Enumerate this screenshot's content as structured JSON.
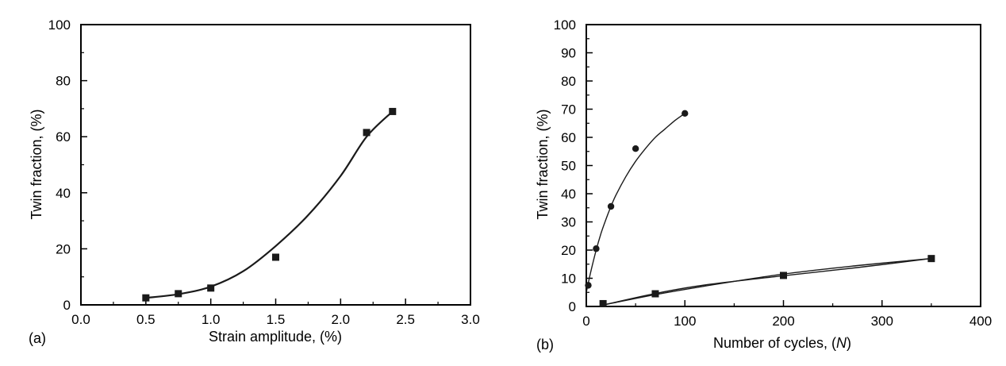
{
  "chart_data": [
    {
      "type": "scatter",
      "panel_label": "(a)",
      "xlabel": "Strain amplitude, (%)",
      "ylabel": "Twin fraction, (%)",
      "xlim": [
        0.0,
        3.0
      ],
      "ylim": [
        0,
        100
      ],
      "x_ticks": [
        0.0,
        0.5,
        1.0,
        1.5,
        2.0,
        2.5,
        3.0
      ],
      "x_tick_labels": [
        "0.0",
        "0.5",
        "1.0",
        "1.5",
        "2.0",
        "2.5",
        "3.0"
      ],
      "y_ticks": [
        0,
        20,
        40,
        60,
        80,
        100
      ],
      "y_tick_labels": [
        "0",
        "20",
        "40",
        "60",
        "80",
        "100"
      ],
      "grid": false,
      "series": [
        {
          "marker": "square",
          "color": "#1a1a1a",
          "points": [
            {
              "x": 0.5,
              "y": 2.5
            },
            {
              "x": 0.75,
              "y": 4.0
            },
            {
              "x": 1.0,
              "y": 6.0
            },
            {
              "x": 1.5,
              "y": 17.0
            },
            {
              "x": 2.2,
              "y": 61.5
            },
            {
              "x": 2.4,
              "y": 69.0
            }
          ],
          "fit_curve": [
            [
              0.5,
              2.5
            ],
            [
              0.75,
              3.8
            ],
            [
              1.0,
              6.5
            ],
            [
              1.25,
              12
            ],
            [
              1.5,
              21
            ],
            [
              1.75,
              32
            ],
            [
              2.0,
              46
            ],
            [
              2.2,
              60
            ],
            [
              2.4,
              69
            ]
          ]
        }
      ]
    },
    {
      "type": "scatter",
      "panel_label": "(b)",
      "xlabel": "Number of cycles, (N)",
      "xlabel_parts": [
        "Number of cycles, (",
        "N",
        ")"
      ],
      "ylabel": "Twin fraction, (%)",
      "xlim": [
        0,
        400
      ],
      "ylim": [
        0,
        100
      ],
      "x_ticks": [
        0,
        100,
        200,
        300,
        400
      ],
      "x_tick_labels": [
        "0",
        "100",
        "200",
        "300",
        "400"
      ],
      "y_ticks": [
        0,
        10,
        20,
        30,
        40,
        50,
        60,
        70,
        80,
        90,
        100
      ],
      "y_tick_labels": [
        "0",
        "10",
        "20",
        "30",
        "40",
        "50",
        "60",
        "70",
        "80",
        "90",
        "100"
      ],
      "grid": false,
      "series": [
        {
          "marker": "circle",
          "color": "#1a1a1a",
          "points": [
            {
              "x": 2,
              "y": 7.5
            },
            {
              "x": 10,
              "y": 20.5
            },
            {
              "x": 25,
              "y": 35.5
            },
            {
              "x": 50,
              "y": 56.0
            },
            {
              "x": 100,
              "y": 68.5
            }
          ],
          "fit_curve": [
            [
              0,
              5
            ],
            [
              5,
              13
            ],
            [
              10,
              20
            ],
            [
              15,
              26
            ],
            [
              20,
              31
            ],
            [
              25,
              35.5
            ],
            [
              30,
              39.5
            ],
            [
              40,
              46
            ],
            [
              50,
              51.5
            ],
            [
              60,
              56
            ],
            [
              70,
              60
            ],
            [
              80,
              63
            ],
            [
              90,
              66
            ],
            [
              100,
              68.5
            ]
          ]
        },
        {
          "marker": "square",
          "color": "#1a1a1a",
          "points": [
            {
              "x": 17,
              "y": 1.0
            },
            {
              "x": 70,
              "y": 4.5
            },
            {
              "x": 200,
              "y": 11.0
            },
            {
              "x": 350,
              "y": 17.0
            }
          ],
          "fit_curve": [
            [
              17,
              0.5
            ],
            [
              70,
              4.2
            ],
            [
              120,
              7.2
            ],
            [
              200,
              11.5
            ],
            [
              275,
              14.5
            ],
            [
              350,
              17.0
            ]
          ],
          "fit_curve_2": [
            [
              17,
              0.5
            ],
            [
              70,
              4.6
            ],
            [
              120,
              7.6
            ],
            [
              200,
              10.9
            ],
            [
              275,
              13.8
            ],
            [
              350,
              17.0
            ]
          ]
        }
      ]
    }
  ]
}
